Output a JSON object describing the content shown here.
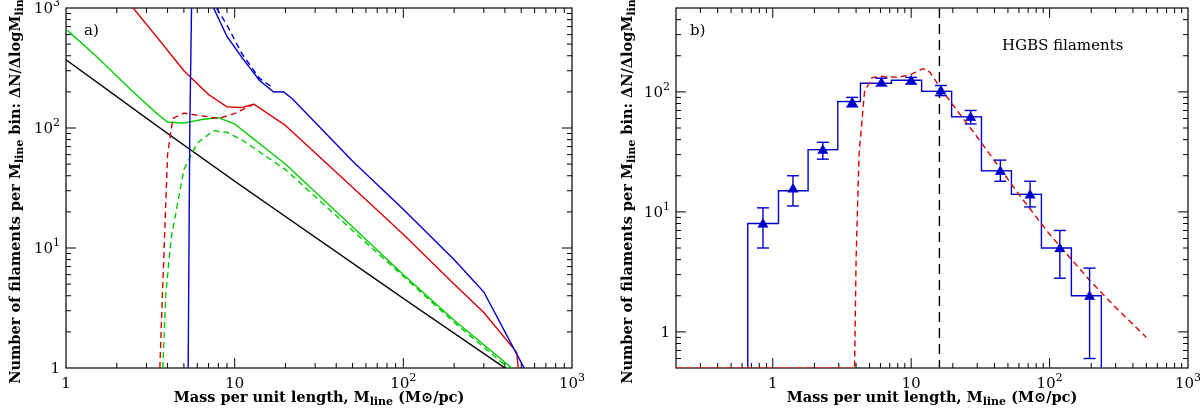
{
  "chart_data": [
    {
      "type": "line",
      "panel_label": "a)",
      "xlabel": "Mass per unit length, M_line (M⊙/pc)",
      "ylabel": "Number of filaments per M_line bin: ΔN/ΔlogM_line",
      "xscale": "log",
      "yscale": "log",
      "xlim": [
        1,
        1000
      ],
      "ylim": [
        1,
        1000
      ],
      "x_tick_labels": [
        "1",
        "10",
        "10^2",
        "10^3"
      ],
      "y_tick_labels": [
        "1",
        "10^1",
        "10^2",
        "10^3"
      ],
      "colors": {
        "black": "#000000",
        "green": "#00cc00",
        "red": "#dd0000",
        "blue": "#0000cc"
      },
      "series": [
        {
          "color": "black",
          "dash": "solid",
          "points": [
            [
              1,
              370
            ],
            [
              4,
              90
            ],
            [
              10,
              36
            ],
            [
              100,
              3.8
            ],
            [
              400,
              1
            ]
          ]
        },
        {
          "color": "green",
          "dash": "solid",
          "points": [
            [
              1.02,
              650
            ],
            [
              1.5,
              400
            ],
            [
              2.5,
              200
            ],
            [
              3.5,
              130
            ],
            [
              4.0,
              112
            ],
            [
              5.0,
              110
            ],
            [
              6.5,
              118
            ],
            [
              8.0,
              122
            ],
            [
              10,
              108
            ],
            [
              20,
              50
            ],
            [
              50,
              15
            ],
            [
              100,
              6
            ],
            [
              200,
              2.5
            ],
            [
              440,
              1
            ]
          ]
        },
        {
          "color": "green",
          "dash": "dashed",
          "points": [
            [
              3.75,
              1
            ],
            [
              3.9,
              4
            ],
            [
              4.2,
              12
            ],
            [
              5.0,
              45
            ],
            [
              6.0,
              75
            ],
            [
              7.5,
              95
            ],
            [
              9.0,
              92
            ],
            [
              11,
              80
            ],
            [
              20,
              45
            ],
            [
              50,
              14
            ],
            [
              100,
              5.8
            ],
            [
              200,
              2.4
            ],
            [
              420,
              1
            ]
          ]
        },
        {
          "color": "red",
          "dash": "solid",
          "points": [
            [
              2.5,
              1000
            ],
            [
              3.5,
              560
            ],
            [
              5.0,
              300
            ],
            [
              7.0,
              190
            ],
            [
              9.0,
              150
            ],
            [
              11,
              148
            ],
            [
              13,
              158
            ],
            [
              20,
              105
            ],
            [
              50,
              32
            ],
            [
              100,
              13
            ],
            [
              200,
              5
            ],
            [
              300,
              2.9
            ],
            [
              470,
              1.35
            ],
            [
              480,
              1
            ]
          ]
        },
        {
          "color": "red",
          "dash": "dashed",
          "points": [
            [
              3.6,
              1
            ],
            [
              3.75,
              5
            ],
            [
              4.0,
              60
            ],
            [
              4.3,
              120
            ],
            [
              5.0,
              133
            ],
            [
              6.0,
              128
            ],
            [
              8.0,
              120
            ],
            [
              10,
              132
            ],
            [
              13,
              158
            ]
          ]
        },
        {
          "color": "blue",
          "dash": "solid",
          "points": [
            [
              5.3,
              1
            ],
            [
              5.42,
              100
            ],
            [
              5.55,
              1000
            ]
          ]
        },
        {
          "color": "blue",
          "dash": "solid",
          "points": [
            [
              7.5,
              1000
            ],
            [
              9.0,
              580
            ],
            [
              11,
              390
            ],
            [
              14,
              250
            ],
            [
              17,
              200
            ],
            [
              19.5,
              200
            ],
            [
              22,
              175
            ],
            [
              50,
              53
            ],
            [
              100,
              21
            ],
            [
              200,
              8
            ],
            [
              300,
              4.3
            ],
            [
              520,
              1
            ]
          ]
        },
        {
          "color": "blue",
          "dash": "dashed",
          "points": [
            [
              7.8,
              1000
            ],
            [
              9.0,
              720
            ],
            [
              11,
              420
            ],
            [
              14,
              260
            ],
            [
              17,
              215
            ]
          ]
        }
      ]
    },
    {
      "type": "bar",
      "panel_label": "b)",
      "annotation": "HGBS filaments",
      "xlabel": "Mass per unit length, M_line (M⊙/pc)",
      "ylabel": "Number of filaments per M_line bin: ΔN/ΔlogM_line",
      "xscale": "log",
      "yscale": "log",
      "xlim": [
        0.2,
        1000
      ],
      "ylim": [
        0.5,
        500
      ],
      "x_tick_labels": [
        "1",
        "10",
        "10^2",
        "10^3"
      ],
      "y_tick_labels": [
        "1",
        "10^1",
        "10^2"
      ],
      "colors": {
        "histogram": "#0000cc",
        "model": "#dd0000",
        "vline": "#000000"
      },
      "histogram": {
        "bin_edges": [
          0.66,
          1.1,
          1.8,
          2.95,
          4.3,
          7.2,
          11.9,
          19.6,
          32.2,
          53,
          87.3,
          143.7,
          236.6
        ],
        "values": [
          8,
          15,
          33,
          83,
          118,
          125,
          101,
          62,
          22,
          14,
          5,
          2
        ]
      },
      "points": {
        "x": [
          0.85,
          1.4,
          2.3,
          3.75,
          6.1,
          10.0,
          16.4,
          26.9,
          44.1,
          72.3,
          118.6,
          194.5
        ],
        "y": [
          8,
          15.7,
          33,
          82,
          120,
          125,
          103,
          62,
          22,
          14,
          5,
          2
        ],
        "err_low": [
          5,
          11.2,
          27.5,
          75,
          112,
          116,
          93,
          54,
          18,
          11,
          2.8,
          0.6
        ],
        "err_high": [
          10.8,
          20,
          38,
          90,
          130,
          132,
          113,
          70,
          27,
          18,
          7,
          3.4
        ]
      },
      "model": {
        "dash": "dashed",
        "points": [
          [
            0.2,
            0.5
          ],
          [
            3.9,
            0.5
          ],
          [
            4.0,
            4
          ],
          [
            4.2,
            30
          ],
          [
            4.6,
            100
          ],
          [
            5.2,
            131
          ],
          [
            6.0,
            135
          ],
          [
            8.0,
            132
          ],
          [
            10,
            140
          ],
          [
            12,
            155
          ],
          [
            13,
            155
          ],
          [
            14,
            140
          ],
          [
            17,
            100
          ],
          [
            30,
            42
          ],
          [
            60,
            14
          ],
          [
            100,
            6.5
          ],
          [
            200,
            2.6
          ],
          [
            300,
            1.6
          ],
          [
            500,
            0.9
          ]
        ]
      },
      "threshold_x": 16.0
    }
  ]
}
